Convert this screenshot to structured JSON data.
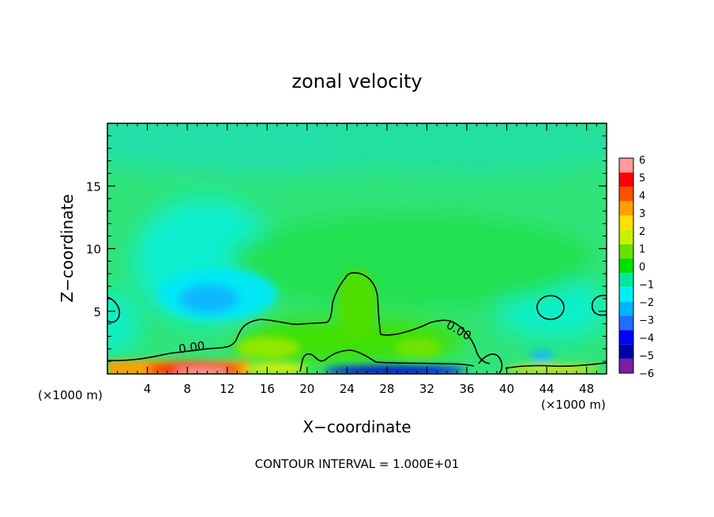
{
  "chart_data": {
    "type": "heatmap",
    "title": "zonal velocity",
    "xlabel": "X−coordinate",
    "ylabel": "Z−coordinate",
    "x_unit_left": "(×1000 m)",
    "x_unit_right": "(×1000 m)",
    "footer": "CONTOUR INTERVAL = 1.000E+01",
    "xlim": [
      0,
      50
    ],
    "ylim": [
      0,
      20
    ],
    "x_ticks": [
      4,
      8,
      12,
      16,
      20,
      24,
      28,
      32,
      36,
      40,
      44,
      48
    ],
    "x_tick_labels": [
      "4",
      "8",
      "12",
      "16",
      "20",
      "24",
      "28",
      "32",
      "36",
      "40",
      "44",
      "48"
    ],
    "y_ticks": [
      5,
      10,
      15
    ],
    "y_tick_labels": [
      "5",
      "10",
      "15"
    ],
    "contour_labels": [
      {
        "text": "0.00",
        "x": 8.5,
        "y": 1.8
      },
      {
        "text": "0.00",
        "x": 35.0,
        "y": 3.2
      }
    ],
    "colorbar": {
      "levels": [
        -6,
        -5,
        -4,
        -3,
        -2,
        -1,
        0,
        1,
        2,
        3,
        4,
        5,
        6
      ],
      "labels": [
        "−6",
        "−5",
        "−4",
        "−3",
        "−2",
        "−1",
        "0",
        "1",
        "2",
        "3",
        "4",
        "5",
        "6"
      ],
      "colors": [
        "#7a1fa2",
        "#0000aa",
        "#0000ff",
        "#1e6fff",
        "#00b4ff",
        "#00f0f0",
        "#00e8a0",
        "#00e000",
        "#66e000",
        "#c8f000",
        "#ffe000",
        "#ffa000",
        "#ff5000",
        "#ff0000",
        "#ff9a9a"
      ]
    },
    "field_features": [
      {
        "feature": "background",
        "value": -0.3
      },
      {
        "feature": "cyan minimum",
        "x": 10,
        "y": 6,
        "value": -2.5
      },
      {
        "feature": "upper cyan band",
        "x": 20,
        "y": 18,
        "value": -1.0
      },
      {
        "feature": "positive region",
        "x": 26,
        "y": 3,
        "value": 0.7
      },
      {
        "feature": "surface jet",
        "x": 9,
        "y": 0.3,
        "value": 5
      },
      {
        "feature": "surface minimum",
        "x": 27,
        "y": 0.3,
        "value": -5
      },
      {
        "feature": "small minimum",
        "x": 43,
        "y": 1.5,
        "value": -2.2
      }
    ]
  }
}
